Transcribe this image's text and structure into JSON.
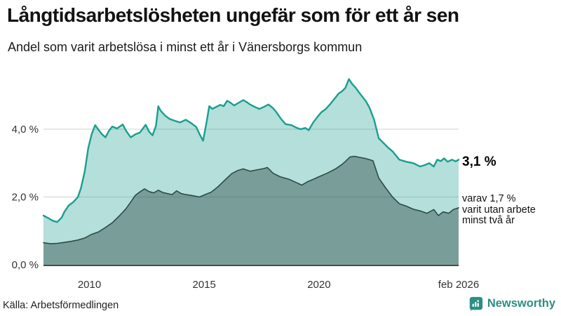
{
  "header": {
    "title": "Långtidsarbetslösheten ungefär som för ett år sen",
    "subtitle": "Andel som varit arbetslösa i minst ett år i Vänersborgs kommun"
  },
  "chart_data": {
    "type": "area",
    "title": "Andel som varit arbetslösa i minst ett år i Vänersborgs kommun",
    "xlabel": "",
    "ylabel": "",
    "xlim": [
      2008.0,
      2026.08
    ],
    "ylim": [
      0,
      5.6
    ],
    "grid": "horizontal",
    "legend": "none",
    "colors": {
      "accent_teal": "#1a9e8f",
      "dark_teal": "#2e4a47",
      "grid": "#d9d9d9",
      "axis": "#4a4a4a"
    },
    "x_ticks": [
      {
        "v": 2010,
        "label": "2010"
      },
      {
        "v": 2015,
        "label": "2015"
      },
      {
        "v": 2020,
        "label": "2020"
      },
      {
        "v": 2026.08,
        "label": "feb 2026"
      }
    ],
    "y_ticks": [
      {
        "v": 0,
        "label": "0,0 %"
      },
      {
        "v": 2,
        "label": "2,0 %"
      },
      {
        "v": 4,
        "label": "4,0 %"
      }
    ],
    "series": [
      {
        "name": "arbetslösa minst ett år",
        "color": "#1a9e8f",
        "fill": "rgba(26,158,143,0.33)",
        "end_value_label": "3,1 %",
        "points": [
          [
            2008.0,
            1.45
          ],
          [
            2008.2,
            1.38
          ],
          [
            2008.4,
            1.3
          ],
          [
            2008.6,
            1.26
          ],
          [
            2008.8,
            1.4
          ],
          [
            2008.9,
            1.55
          ],
          [
            2009.1,
            1.75
          ],
          [
            2009.3,
            1.85
          ],
          [
            2009.5,
            2.0
          ],
          [
            2009.63,
            2.26
          ],
          [
            2009.8,
            2.76
          ],
          [
            2009.95,
            3.44
          ],
          [
            2010.1,
            3.86
          ],
          [
            2010.25,
            4.12
          ],
          [
            2010.4,
            3.98
          ],
          [
            2010.55,
            3.85
          ],
          [
            2010.7,
            3.76
          ],
          [
            2010.85,
            3.95
          ],
          [
            2011.0,
            4.08
          ],
          [
            2011.2,
            4.02
          ],
          [
            2011.45,
            4.14
          ],
          [
            2011.6,
            3.95
          ],
          [
            2011.8,
            3.76
          ],
          [
            2012.0,
            3.85
          ],
          [
            2012.2,
            3.9
          ],
          [
            2012.45,
            4.13
          ],
          [
            2012.6,
            3.93
          ],
          [
            2012.75,
            3.82
          ],
          [
            2012.9,
            4.1
          ],
          [
            2013.0,
            4.68
          ],
          [
            2013.1,
            4.55
          ],
          [
            2013.3,
            4.4
          ],
          [
            2013.5,
            4.3
          ],
          [
            2013.75,
            4.24
          ],
          [
            2013.95,
            4.2
          ],
          [
            2014.2,
            4.28
          ],
          [
            2014.45,
            4.17
          ],
          [
            2014.65,
            4.07
          ],
          [
            2014.8,
            3.85
          ],
          [
            2014.95,
            3.66
          ],
          [
            2015.1,
            4.2
          ],
          [
            2015.22,
            4.68
          ],
          [
            2015.35,
            4.6
          ],
          [
            2015.5,
            4.65
          ],
          [
            2015.7,
            4.72
          ],
          [
            2015.85,
            4.68
          ],
          [
            2016.0,
            4.84
          ],
          [
            2016.15,
            4.78
          ],
          [
            2016.3,
            4.7
          ],
          [
            2016.5,
            4.78
          ],
          [
            2016.7,
            4.86
          ],
          [
            2016.85,
            4.8
          ],
          [
            2017.0,
            4.73
          ],
          [
            2017.2,
            4.66
          ],
          [
            2017.4,
            4.6
          ],
          [
            2017.6,
            4.66
          ],
          [
            2017.8,
            4.73
          ],
          [
            2018.0,
            4.62
          ],
          [
            2018.15,
            4.5
          ],
          [
            2018.35,
            4.3
          ],
          [
            2018.55,
            4.15
          ],
          [
            2018.8,
            4.12
          ],
          [
            2019.0,
            4.05
          ],
          [
            2019.2,
            4.0
          ],
          [
            2019.4,
            4.04
          ],
          [
            2019.55,
            3.97
          ],
          [
            2019.75,
            4.2
          ],
          [
            2019.95,
            4.38
          ],
          [
            2020.1,
            4.5
          ],
          [
            2020.3,
            4.6
          ],
          [
            2020.5,
            4.75
          ],
          [
            2020.7,
            4.92
          ],
          [
            2020.85,
            5.05
          ],
          [
            2021.0,
            5.12
          ],
          [
            2021.15,
            5.22
          ],
          [
            2021.3,
            5.48
          ],
          [
            2021.45,
            5.33
          ],
          [
            2021.6,
            5.22
          ],
          [
            2021.75,
            5.08
          ],
          [
            2021.9,
            4.95
          ],
          [
            2022.05,
            4.82
          ],
          [
            2022.2,
            4.63
          ],
          [
            2022.4,
            4.28
          ],
          [
            2022.6,
            3.73
          ],
          [
            2022.8,
            3.6
          ],
          [
            2023.0,
            3.46
          ],
          [
            2023.2,
            3.35
          ],
          [
            2023.5,
            3.1
          ],
          [
            2023.8,
            3.04
          ],
          [
            2024.1,
            3.0
          ],
          [
            2024.4,
            2.9
          ],
          [
            2024.6,
            2.94
          ],
          [
            2024.8,
            3.0
          ],
          [
            2025.0,
            2.9
          ],
          [
            2025.15,
            3.1
          ],
          [
            2025.3,
            3.06
          ],
          [
            2025.45,
            3.14
          ],
          [
            2025.6,
            3.04
          ],
          [
            2025.8,
            3.1
          ],
          [
            2025.95,
            3.05
          ],
          [
            2026.08,
            3.1
          ]
        ]
      },
      {
        "name": "varav arbetslösa minst två år",
        "color": "#2e4a47",
        "fill": "rgba(46,74,71,0.44)",
        "end_value_label": "1,7 %",
        "points": [
          [
            2008.0,
            0.65
          ],
          [
            2008.3,
            0.62
          ],
          [
            2008.6,
            0.63
          ],
          [
            2008.9,
            0.66
          ],
          [
            2009.2,
            0.69
          ],
          [
            2009.5,
            0.73
          ],
          [
            2009.8,
            0.79
          ],
          [
            2010.1,
            0.9
          ],
          [
            2010.4,
            0.97
          ],
          [
            2010.7,
            1.1
          ],
          [
            2011.0,
            1.24
          ],
          [
            2011.3,
            1.44
          ],
          [
            2011.6,
            1.66
          ],
          [
            2011.8,
            1.85
          ],
          [
            2012.0,
            2.05
          ],
          [
            2012.2,
            2.15
          ],
          [
            2012.4,
            2.24
          ],
          [
            2012.6,
            2.16
          ],
          [
            2012.8,
            2.12
          ],
          [
            2013.0,
            2.2
          ],
          [
            2013.2,
            2.13
          ],
          [
            2013.4,
            2.1
          ],
          [
            2013.6,
            2.07
          ],
          [
            2013.8,
            2.18
          ],
          [
            2014.0,
            2.1
          ],
          [
            2014.2,
            2.07
          ],
          [
            2014.5,
            2.04
          ],
          [
            2014.8,
            2.0
          ],
          [
            2015.0,
            2.06
          ],
          [
            2015.3,
            2.14
          ],
          [
            2015.6,
            2.3
          ],
          [
            2015.9,
            2.5
          ],
          [
            2016.2,
            2.69
          ],
          [
            2016.45,
            2.78
          ],
          [
            2016.7,
            2.83
          ],
          [
            2017.0,
            2.76
          ],
          [
            2017.3,
            2.8
          ],
          [
            2017.6,
            2.84
          ],
          [
            2017.75,
            2.87
          ],
          [
            2018.0,
            2.7
          ],
          [
            2018.3,
            2.6
          ],
          [
            2018.7,
            2.52
          ],
          [
            2019.0,
            2.43
          ],
          [
            2019.25,
            2.35
          ],
          [
            2019.5,
            2.45
          ],
          [
            2019.75,
            2.52
          ],
          [
            2020.0,
            2.6
          ],
          [
            2020.35,
            2.7
          ],
          [
            2020.7,
            2.82
          ],
          [
            2021.0,
            2.96
          ],
          [
            2021.15,
            3.05
          ],
          [
            2021.35,
            3.18
          ],
          [
            2021.55,
            3.2
          ],
          [
            2021.7,
            3.18
          ],
          [
            2022.0,
            3.14
          ],
          [
            2022.2,
            3.1
          ],
          [
            2022.35,
            3.07
          ],
          [
            2022.6,
            2.56
          ],
          [
            2022.9,
            2.27
          ],
          [
            2023.2,
            2.0
          ],
          [
            2023.5,
            1.8
          ],
          [
            2023.8,
            1.73
          ],
          [
            2024.1,
            1.64
          ],
          [
            2024.4,
            1.59
          ],
          [
            2024.7,
            1.52
          ],
          [
            2025.0,
            1.63
          ],
          [
            2025.2,
            1.45
          ],
          [
            2025.4,
            1.56
          ],
          [
            2025.65,
            1.52
          ],
          [
            2025.85,
            1.63
          ],
          [
            2026.08,
            1.68
          ]
        ]
      }
    ]
  },
  "annotations": {
    "latest_value": "3,1 %",
    "note_lines": [
      "varav 1,7 %",
      "varit utan arbete",
      "minst två år"
    ]
  },
  "footer": {
    "source": "Källa: Arbetsförmedlingen",
    "brand": "Newsworthy",
    "brand_color": "#2b8f82"
  }
}
